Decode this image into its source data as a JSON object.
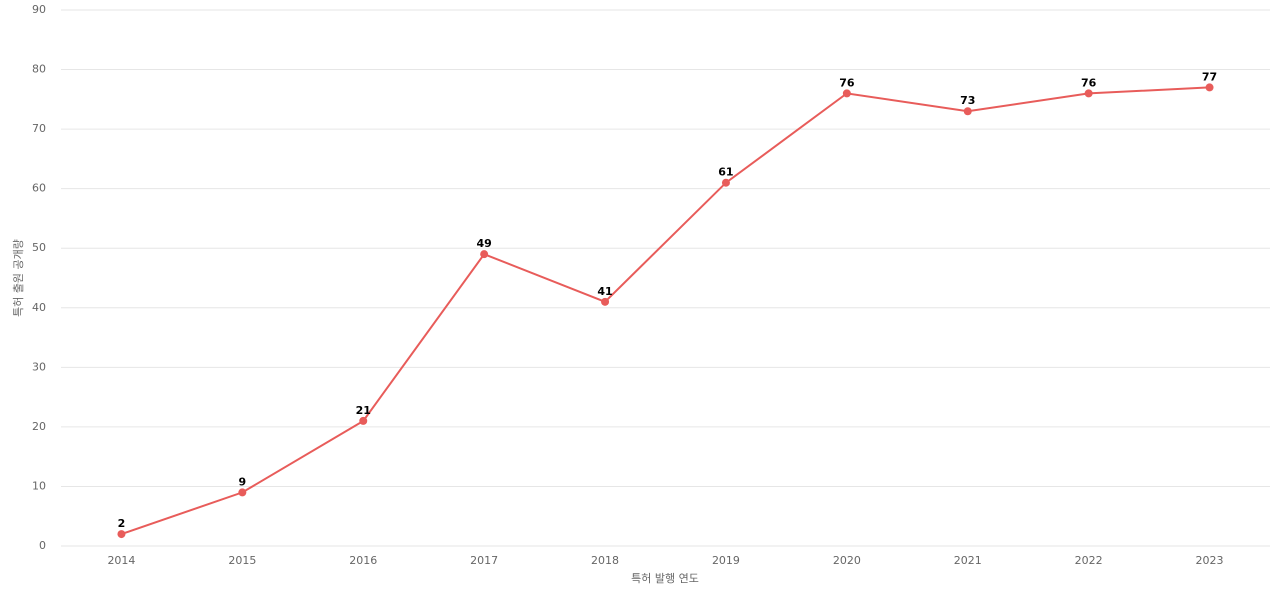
{
  "chart_data": {
    "type": "line",
    "categories": [
      "2014",
      "2015",
      "2016",
      "2017",
      "2018",
      "2019",
      "2020",
      "2021",
      "2022",
      "2023"
    ],
    "series": [
      {
        "name": "특허 출원 공개량",
        "color": "#e85c5a",
        "values": [
          2,
          9,
          21,
          49,
          41,
          61,
          76,
          73,
          76,
          77
        ]
      }
    ],
    "x_label": "특허 발행 연도",
    "y_label": "특허 출원 공개량",
    "ylim": [
      0,
      90
    ],
    "yticks": [
      0,
      10,
      20,
      30,
      40,
      50,
      60,
      70,
      80,
      90
    ],
    "grid": true
  }
}
